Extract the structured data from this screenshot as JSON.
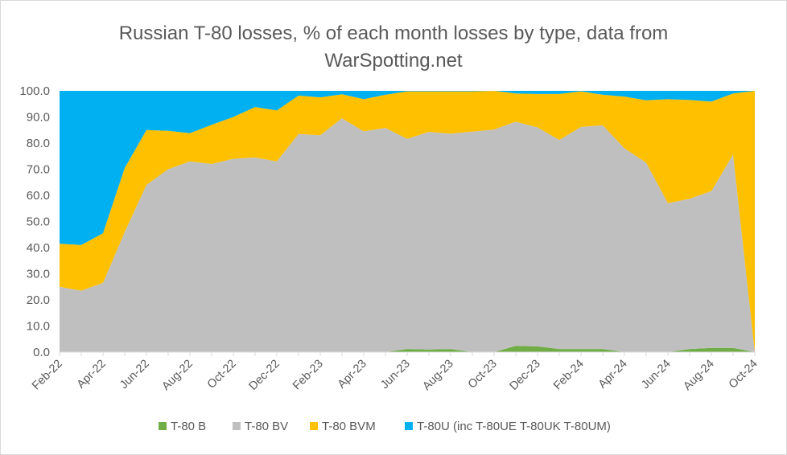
{
  "chart_data": {
    "type": "area",
    "stacked": true,
    "title_line1": "Russian T-80 losses, % of each month losses by type, data from",
    "title_line2": "WarSpotting.net",
    "xlabel": "",
    "ylabel": "",
    "ylim": [
      0,
      100
    ],
    "y_ticks": [
      "0.0",
      "10.0",
      "20.0",
      "30.0",
      "40.0",
      "50.0",
      "60.0",
      "70.0",
      "80.0",
      "90.0",
      "100.0"
    ],
    "x": [
      "Feb-22",
      "Mar-22",
      "Apr-22",
      "May-22",
      "Jun-22",
      "Jul-22",
      "Aug-22",
      "Sep-22",
      "Oct-22",
      "Nov-22",
      "Dec-22",
      "Jan-23",
      "Feb-23",
      "Mar-23",
      "Apr-23",
      "May-23",
      "Jun-23",
      "Jul-23",
      "Aug-23",
      "Sep-23",
      "Oct-23",
      "Nov-23",
      "Dec-23",
      "Jan-24",
      "Feb-24",
      "Mar-24",
      "Apr-24",
      "May-24",
      "Jun-24",
      "Jul-24",
      "Aug-24",
      "Sep-24",
      "Oct-24"
    ],
    "x_tick_labels": [
      "Feb-22",
      "",
      "Apr-22",
      "",
      "Jun-22",
      "",
      "Aug-22",
      "",
      "Oct-22",
      "",
      "Dec-22",
      "",
      "Feb-23",
      "",
      "Apr-23",
      "",
      "Jun-23",
      "",
      "Aug-23",
      "",
      "Oct-23",
      "",
      "Dec-23",
      "",
      "Feb-24",
      "",
      "Apr-24",
      "",
      "Jun-24",
      "",
      "Aug-24",
      "",
      "Oct-24"
    ],
    "grid": false,
    "legend_position": "bottom",
    "series": [
      {
        "name": "T-80 B",
        "color": "#70ad47",
        "values": [
          0,
          0,
          0,
          0,
          0,
          0,
          0,
          0,
          0,
          0,
          0,
          0,
          0,
          0,
          0,
          0,
          1.2,
          1.0,
          1.2,
          0,
          0,
          2.4,
          2.2,
          1.2,
          1.2,
          1.2,
          0,
          0,
          0,
          1.2,
          1.6,
          1.6,
          0
        ]
      },
      {
        "name": "T-80 BV",
        "color": "#bfbfbf",
        "values": [
          25,
          23.5,
          26.5,
          46,
          64,
          70,
          73,
          72,
          74,
          74.5,
          73,
          83.5,
          83,
          89.5,
          84.5,
          85.8,
          80.4,
          83.3,
          82.4,
          84.4,
          85.2,
          85.8,
          83.8,
          80,
          85,
          85.6,
          78,
          72.5,
          57,
          57.5,
          60,
          74,
          0
        ]
      },
      {
        "name": "T-80 BVM",
        "color": "#ffc000",
        "values": [
          16.5,
          17.5,
          19,
          24.5,
          21,
          14.7,
          10.8,
          15,
          16,
          19.3,
          19.5,
          14.7,
          14.5,
          9.2,
          12.3,
          12.7,
          18.2,
          15.5,
          16.2,
          15.4,
          14.8,
          10.8,
          12.8,
          17.6,
          13.6,
          11.7,
          19.8,
          23.9,
          39.8,
          37.8,
          34.3,
          23.4,
          100
        ]
      },
      {
        "name": "T-80U (inc T-80UE T-80UK T-80UM)",
        "color": "#00b0f0",
        "values": [
          58.5,
          59,
          54.5,
          29.5,
          15,
          15.3,
          16.2,
          13,
          10,
          6.2,
          7.5,
          1.8,
          2.5,
          1.3,
          3.2,
          1.5,
          0.2,
          0.2,
          0.2,
          0.2,
          0,
          1,
          1.2,
          1.2,
          0.2,
          1.5,
          2.2,
          3.6,
          3.2,
          3.5,
          4.1,
          1,
          0
        ]
      }
    ]
  }
}
